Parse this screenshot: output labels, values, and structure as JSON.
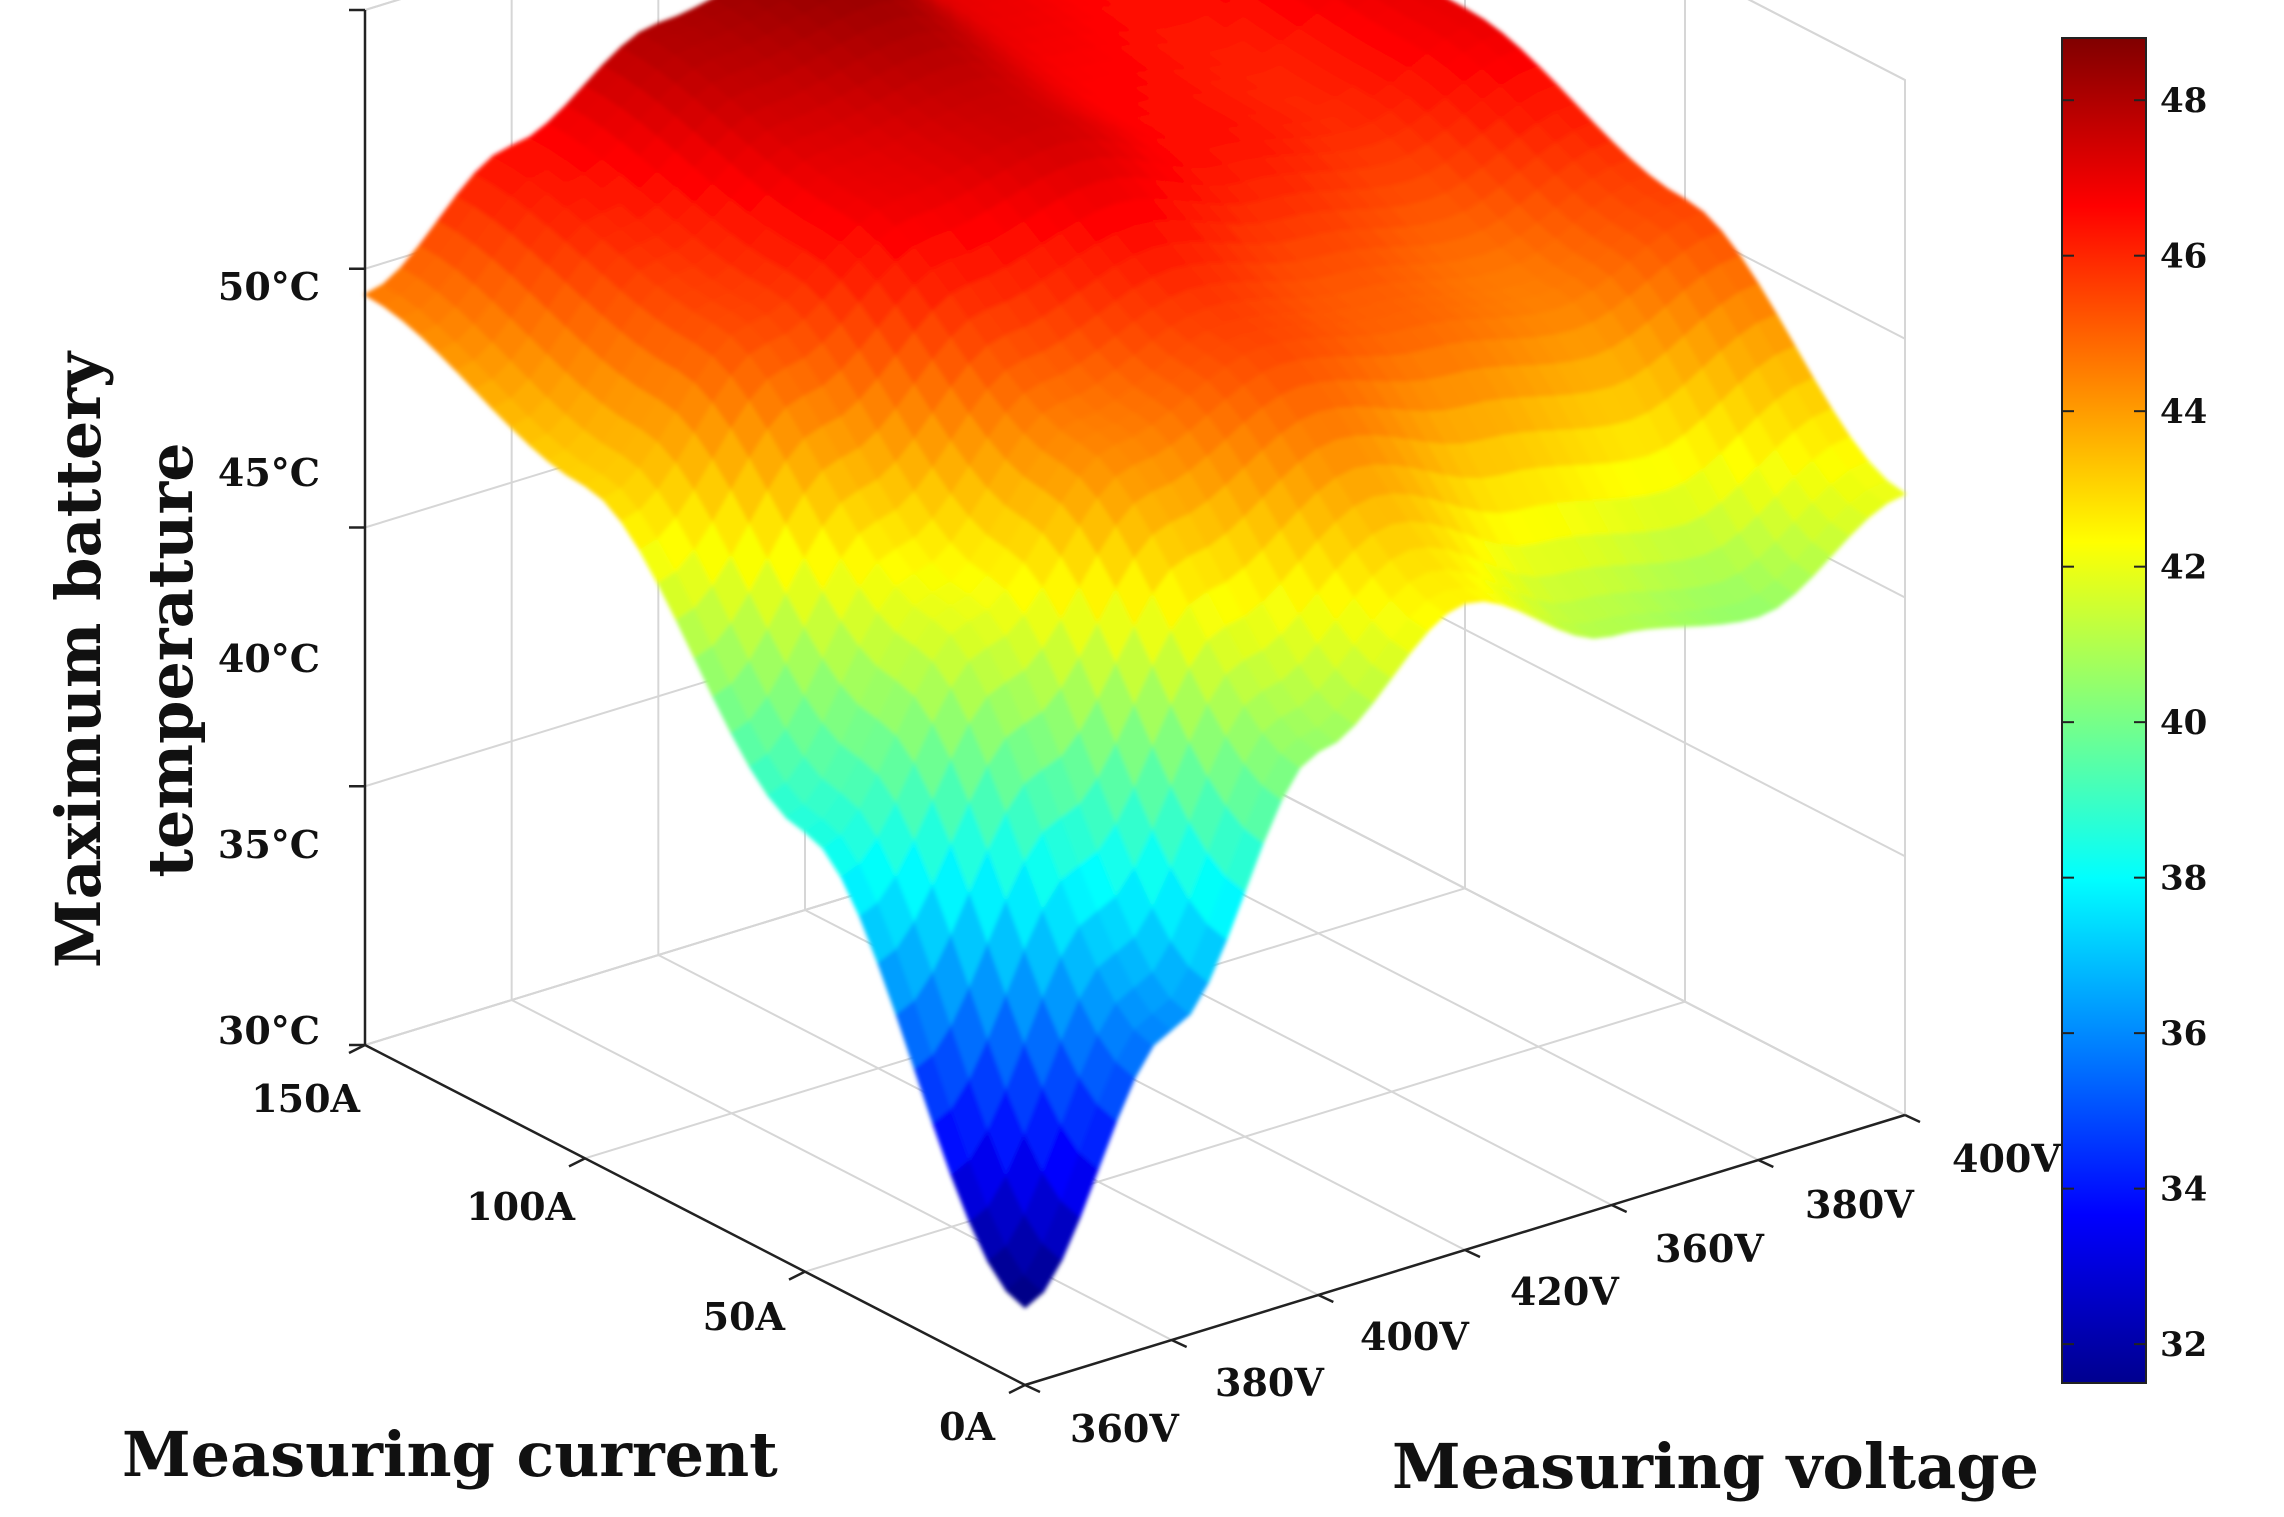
{
  "chart_data": {
    "type": "surface",
    "title": "",
    "zlabel_lines": [
      "Maximum battery",
      "temperature"
    ],
    "xlabel": "Measuring current",
    "ylabel": "Measuring voltage",
    "x_ticks": [
      "0A",
      "50A",
      "100A",
      "150A"
    ],
    "x_tick_values": [
      0,
      50,
      100,
      150
    ],
    "y_ticks": [
      "360V",
      "380V",
      "400V",
      "420V",
      "360V",
      "380V",
      "400V"
    ],
    "z_ticks": [
      "30°C",
      "35°C",
      "40°C",
      "45°C",
      "50°C"
    ],
    "z_tick_values": [
      30,
      35,
      40,
      45,
      50
    ],
    "zlim": [
      30,
      50
    ],
    "x_values": [
      0,
      50,
      100,
      150
    ],
    "y_index_values": [
      0,
      1,
      2,
      3,
      4,
      5,
      6
    ],
    "z_values": [
      [
        31.5,
        36.0,
        40.5,
        42.5,
        41.0,
        40.5,
        42.0
      ],
      [
        38.5,
        42.0,
        44.5,
        45.5,
        45.0,
        44.5,
        45.5
      ],
      [
        43.0,
        45.5,
        47.0,
        47.5,
        46.5,
        46.0,
        47.0
      ],
      [
        44.5,
        46.5,
        48.0,
        48.5,
        47.0,
        46.5,
        47.5
      ]
    ],
    "colorbar": {
      "ticks": [
        "32",
        "34",
        "36",
        "38",
        "40",
        "42",
        "44",
        "46",
        "48"
      ],
      "tick_values": [
        32,
        34,
        36,
        38,
        40,
        42,
        44,
        46,
        48
      ],
      "range": [
        31.5,
        48.8
      ],
      "colormap": "jet"
    },
    "grid": true
  }
}
